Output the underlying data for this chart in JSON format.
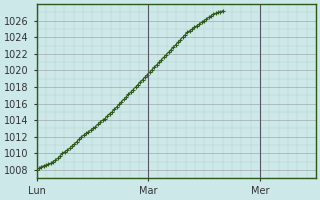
{
  "title": "",
  "bg_color": "#cce8e8",
  "plot_bg_color": "#cce8e8",
  "line_color": "#2d5a1b",
  "marker_color": "#2d5a1b",
  "grid_color_major": "#999999",
  "grid_color_minor": "#bbcccc",
  "xtick_labels": [
    "Lun",
    "Mar",
    "Mer"
  ],
  "xtick_positions": [
    0,
    48,
    96
  ],
  "xlim": [
    0,
    120
  ],
  "ylim": [
    1007,
    1028
  ],
  "yticks": [
    1008,
    1010,
    1012,
    1014,
    1016,
    1018,
    1020,
    1022,
    1024,
    1026
  ],
  "tick_fontsize": 7,
  "y_values": [
    1008.0,
    1008.2,
    1008.4,
    1008.5,
    1008.6,
    1008.7,
    1008.8,
    1009.0,
    1009.2,
    1009.4,
    1009.7,
    1010.0,
    1010.2,
    1010.4,
    1010.6,
    1010.9,
    1011.1,
    1011.4,
    1011.7,
    1012.0,
    1012.2,
    1012.4,
    1012.6,
    1012.8,
    1013.0,
    1013.2,
    1013.5,
    1013.8,
    1014.0,
    1014.2,
    1014.5,
    1014.8,
    1015.0,
    1015.3,
    1015.6,
    1015.9,
    1016.2,
    1016.5,
    1016.8,
    1017.1,
    1017.4,
    1017.7,
    1018.0,
    1018.3,
    1018.6,
    1018.9,
    1019.2,
    1019.5,
    1019.8,
    1020.1,
    1020.4,
    1020.7,
    1021.0,
    1021.3,
    1021.6,
    1021.9,
    1022.2,
    1022.5,
    1022.8,
    1023.1,
    1023.4,
    1023.7,
    1024.0,
    1024.3,
    1024.6,
    1024.8,
    1025.0,
    1025.2,
    1025.4,
    1025.6,
    1025.8,
    1026.0,
    1026.2,
    1026.4,
    1026.6,
    1026.8,
    1026.9,
    1027.0,
    1027.1,
    1027.2
  ],
  "vline_color": "#555566",
  "vline_positions": [
    0,
    48,
    96
  ]
}
